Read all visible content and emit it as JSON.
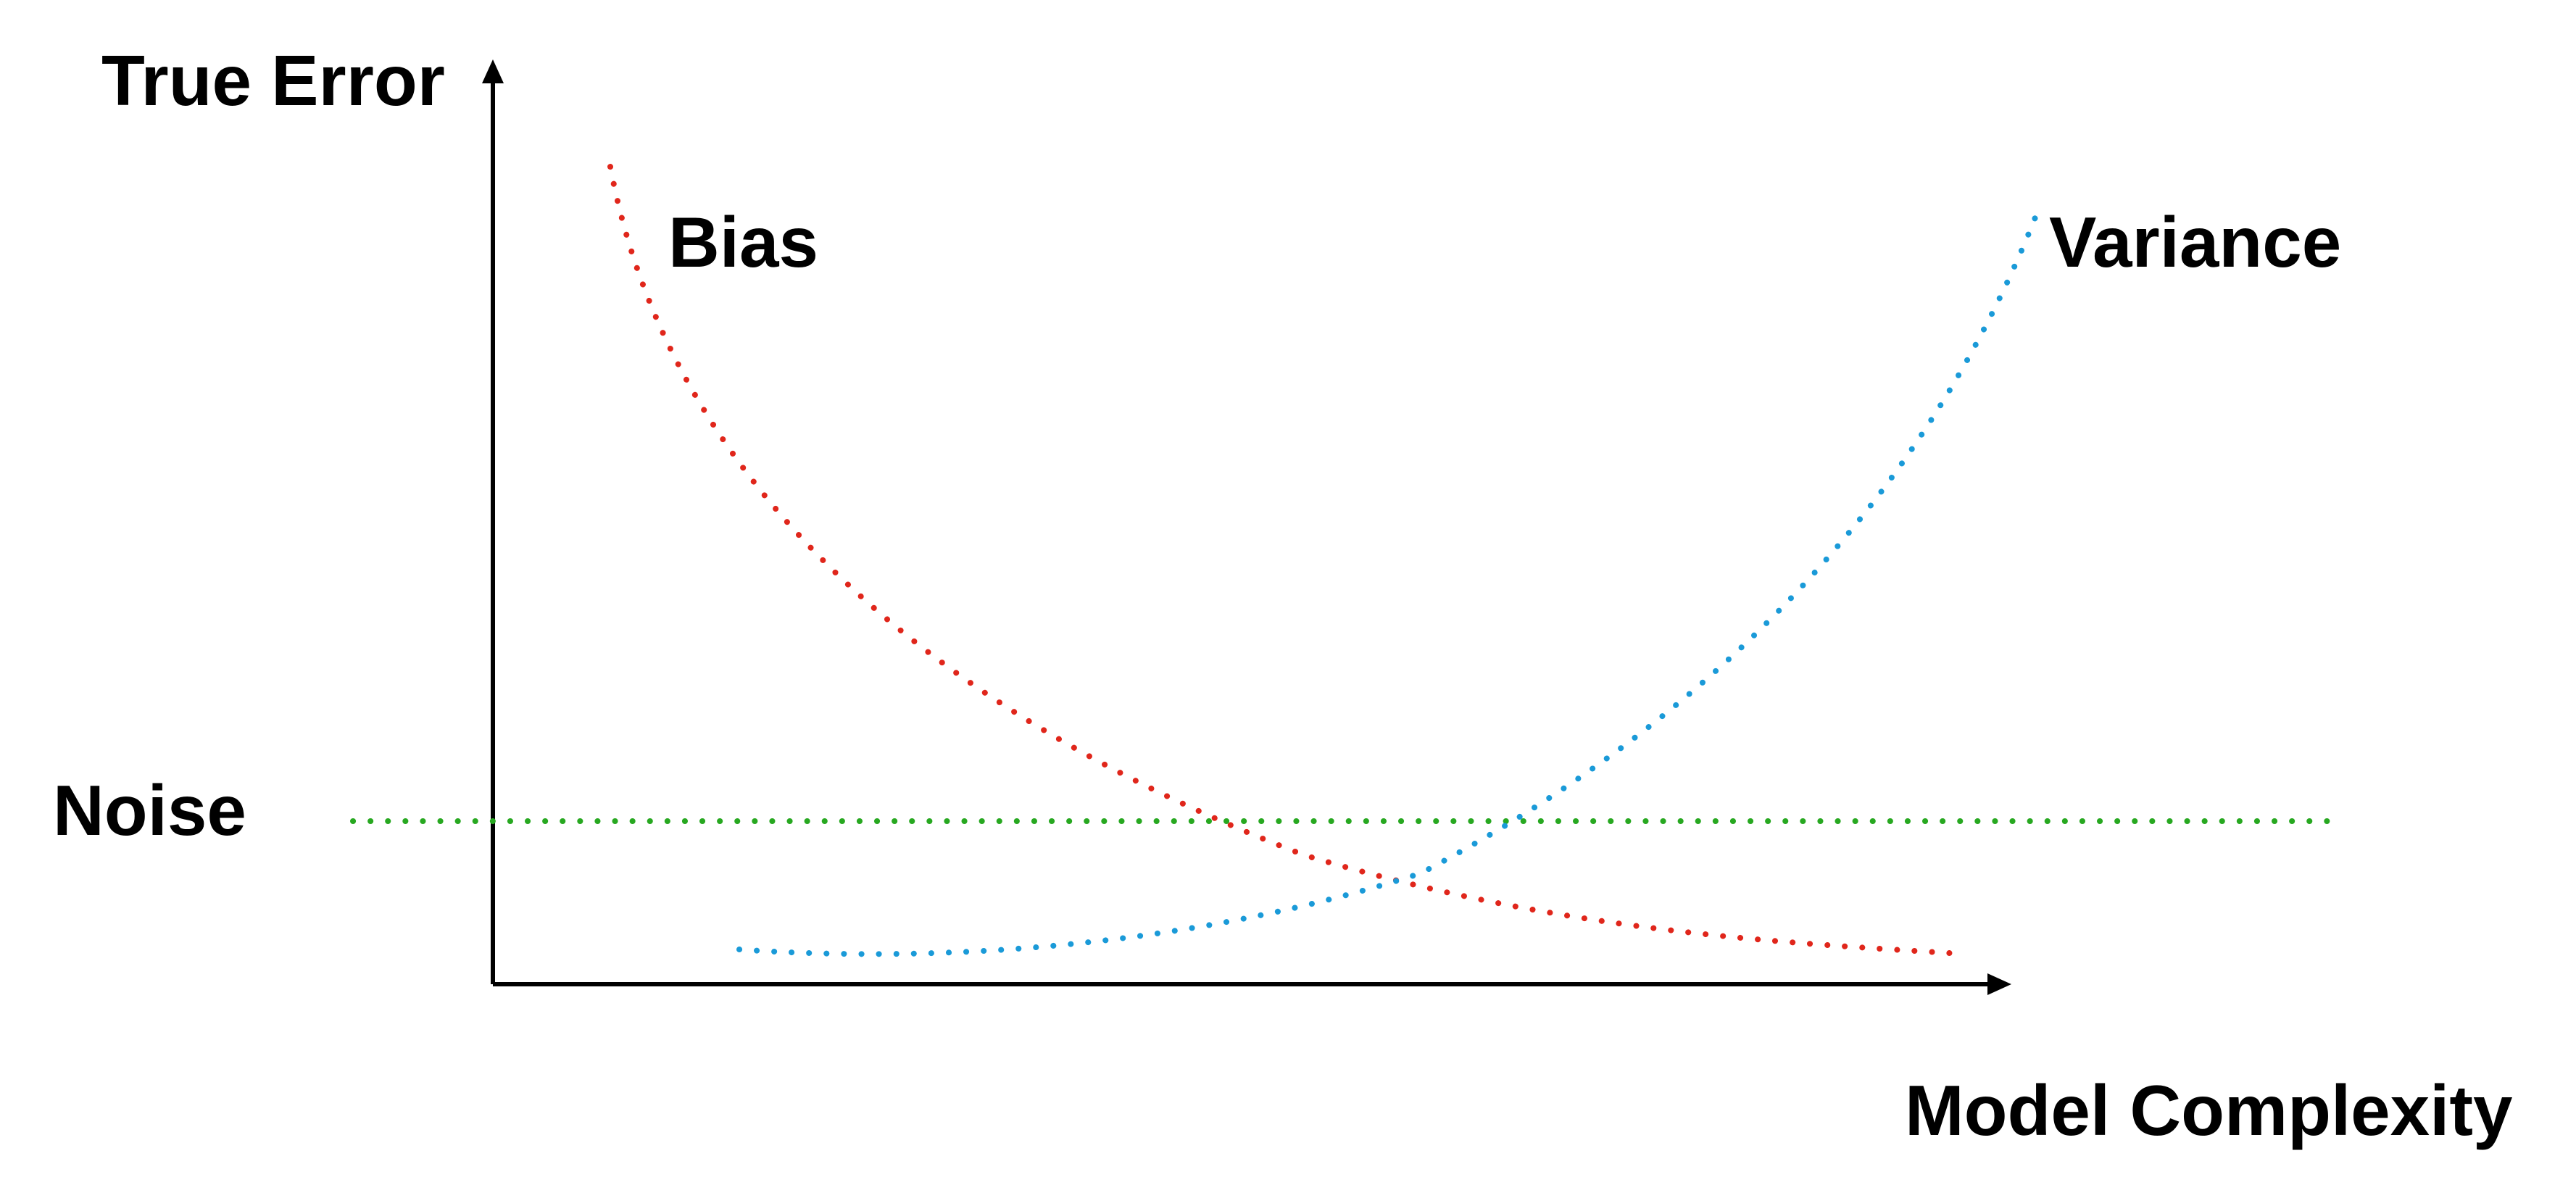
{
  "axes": {
    "y_label": "True Error",
    "x_label": "Model Complexity"
  },
  "curves": {
    "bias": {
      "label": "Bias",
      "color": "#e0261b"
    },
    "variance": {
      "label": "Variance",
      "color": "#1a9ad8"
    },
    "noise": {
      "label": "Noise",
      "color": "#27a820"
    }
  },
  "colors": {
    "axis": "#000000",
    "background": "#ffffff"
  }
}
